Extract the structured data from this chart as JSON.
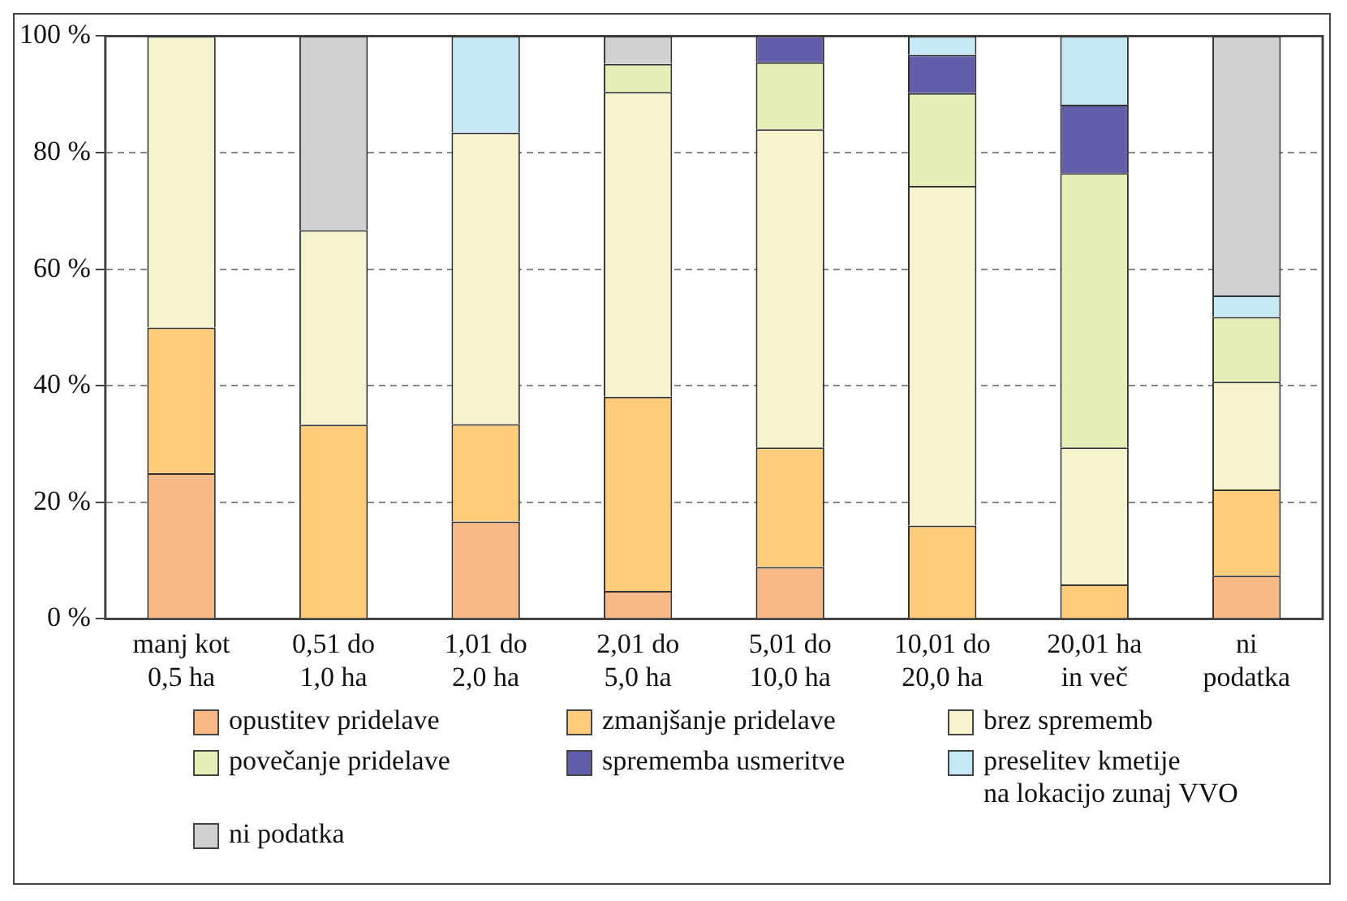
{
  "chart_data": {
    "type": "bar",
    "stacked": true,
    "categories": [
      "manj kot\n0,5 ha",
      "0,51 do\n1,0 ha",
      "1,01 do\n2,0 ha",
      "2,01 do\n5,0 ha",
      "5,01 do\n10,0 ha",
      "10,01 do\n20,0 ha",
      "20,01 ha\nin več",
      "ni\npodatka"
    ],
    "series": [
      {
        "name": "opustitev pridelave",
        "color": "#f8b987",
        "values": [
          25,
          0,
          16.7,
          4.8,
          8.9,
          0,
          0,
          7.4
        ]
      },
      {
        "name": "zmanjšanje pridelave",
        "color": "#fecc7a",
        "values": [
          25,
          33.3,
          16.7,
          33.3,
          20.5,
          16,
          5.9,
          14.8
        ]
      },
      {
        "name": "brez sprememb",
        "color": "#f7f3cf",
        "values": [
          50,
          33.4,
          50,
          52.3,
          54.6,
          58.3,
          23.5,
          18.5
        ]
      },
      {
        "name": "povečanje pridelave",
        "color": "#e7efb8",
        "values": [
          0,
          0,
          0,
          4.8,
          11.5,
          15.9,
          47.1,
          11.1
        ]
      },
      {
        "name": "sprememba usmeritve",
        "color": "#625ea9",
        "values": [
          0,
          0,
          0,
          0,
          4.5,
          6.6,
          11.7,
          0
        ]
      },
      {
        "name": "preselitev kmetije\nna lokacijo zunaj VVO",
        "color": "#c6e8f7",
        "values": [
          0,
          0,
          16.6,
          0,
          0,
          3.2,
          11.8,
          3.7
        ]
      },
      {
        "name": "ni podatka",
        "color": "#d0d1d3",
        "values": [
          0,
          33.3,
          0,
          4.8,
          0,
          0,
          0,
          44.5
        ]
      }
    ],
    "ylim": [
      0,
      100
    ],
    "yticks": [
      {
        "value": 0,
        "label": "0 %"
      },
      {
        "value": 20,
        "label": "20 %"
      },
      {
        "value": 40,
        "label": "40 %"
      },
      {
        "value": 60,
        "label": "60 %"
      },
      {
        "value": 80,
        "label": "80 %"
      },
      {
        "value": 100,
        "label": "100 %"
      }
    ],
    "grid": "y",
    "legend": "bottom"
  }
}
